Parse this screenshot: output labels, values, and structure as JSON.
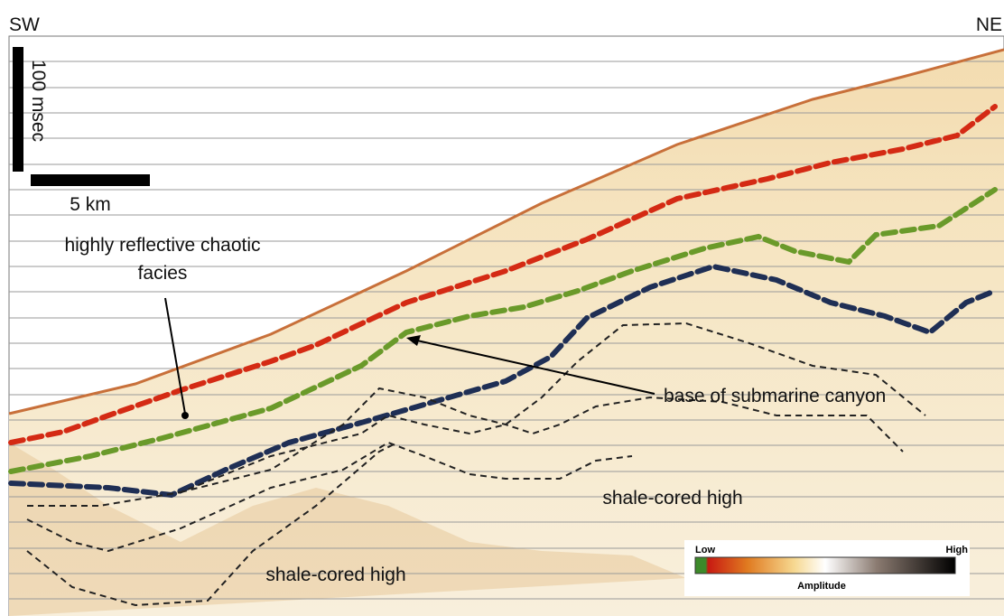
{
  "orientation": {
    "left": "SW",
    "right": "NE"
  },
  "scale": {
    "time": "100 msec",
    "distance": "5 km"
  },
  "annotations": {
    "chaotic_facies": [
      "highly reflective chaotic",
      "facies"
    ],
    "canyon": "base of submarine canyon",
    "shale_high_right": "shale-cored high",
    "shale_high_left": "shale-cored high"
  },
  "colorbar": {
    "low": "Low",
    "high": "High",
    "title": "Amplitude"
  }
}
